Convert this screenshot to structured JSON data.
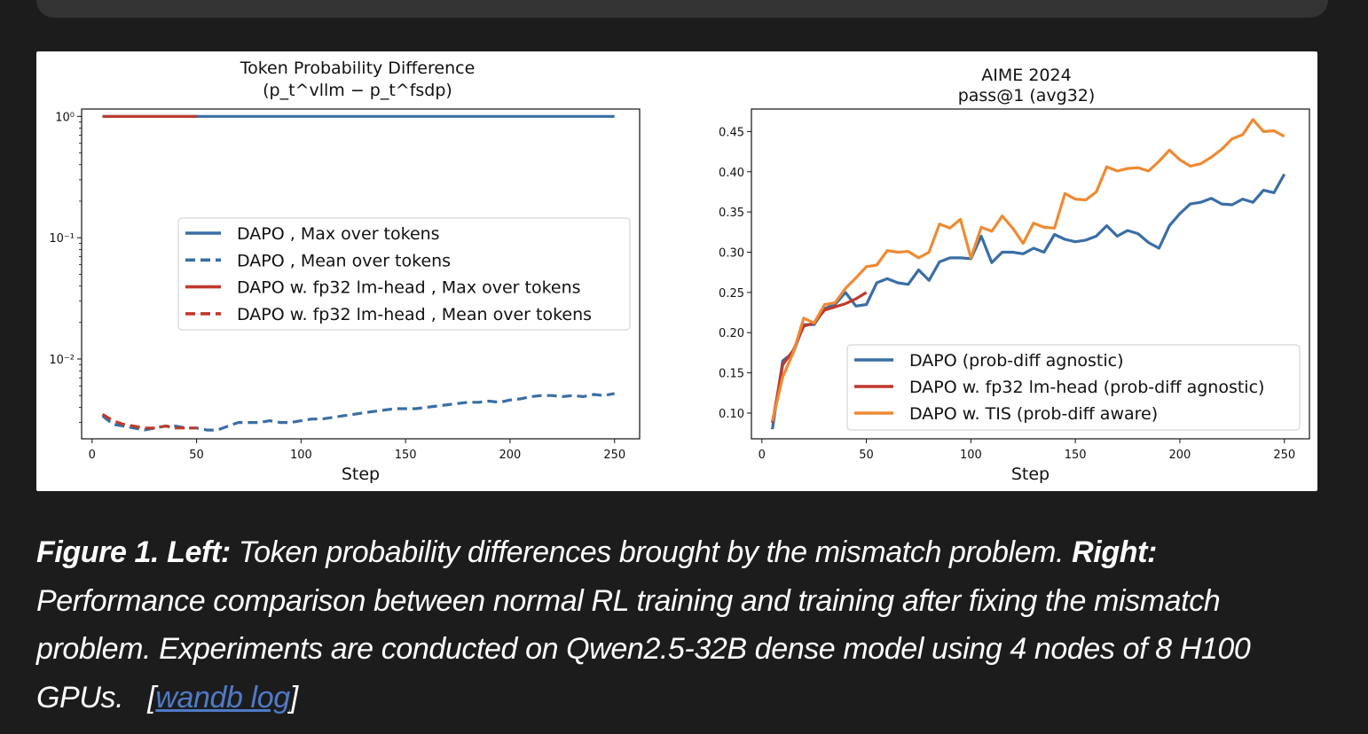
{
  "chart_data": [
    {
      "type": "line",
      "title": "Token Probability Difference",
      "subtitle": "(p_t^vllm − p_t^fsdp)",
      "xlabel": "Step",
      "ylabel": "",
      "yscale": "log",
      "xlim": [
        -5,
        262
      ],
      "ylim": [
        0.0022,
        1.15
      ],
      "xticks": [
        "0",
        "50",
        "100",
        "150",
        "200",
        "250"
      ],
      "yticks": [
        "10⁰",
        "10⁻¹",
        "10⁻²"
      ],
      "legend_position": "center",
      "series": [
        {
          "name": "DAPO , Max over tokens",
          "color": "#3a6ea5",
          "style": "solid",
          "x": [
            5,
            250
          ],
          "y": [
            1.0,
            1.0
          ]
        },
        {
          "name": "DAPO , Mean over tokens",
          "color": "#3a6ea5",
          "style": "dashed",
          "x": [
            5,
            10,
            15,
            20,
            25,
            30,
            35,
            40,
            45,
            50,
            55,
            60,
            65,
            70,
            75,
            80,
            85,
            90,
            95,
            100,
            105,
            110,
            115,
            120,
            125,
            130,
            135,
            140,
            145,
            150,
            155,
            160,
            165,
            170,
            175,
            180,
            185,
            190,
            195,
            200,
            205,
            210,
            215,
            220,
            225,
            230,
            235,
            240,
            245,
            250
          ],
          "y": [
            0.0034,
            0.0029,
            0.0028,
            0.0027,
            0.0026,
            0.0027,
            0.0028,
            0.0028,
            0.0027,
            0.0027,
            0.0026,
            0.0026,
            0.0028,
            0.003,
            0.003,
            0.003,
            0.0031,
            0.003,
            0.003,
            0.0031,
            0.0032,
            0.0032,
            0.0033,
            0.0034,
            0.0035,
            0.0036,
            0.0037,
            0.0038,
            0.0039,
            0.0039,
            0.0039,
            0.004,
            0.0041,
            0.0042,
            0.0043,
            0.0044,
            0.0044,
            0.0045,
            0.0044,
            0.0046,
            0.0047,
            0.0049,
            0.005,
            0.005,
            0.0049,
            0.005,
            0.0049,
            0.0051,
            0.005,
            0.0052
          ]
        },
        {
          "name": "DAPO w. fp32 lm-head , Max over tokens",
          "color": "#c0392b",
          "style": "solid",
          "x": [
            5,
            50
          ],
          "y": [
            1.0,
            1.0
          ]
        },
        {
          "name": "DAPO w. fp32 lm-head , Mean over tokens",
          "color": "#c0392b",
          "style": "dashed",
          "x": [
            5,
            10,
            15,
            20,
            25,
            30,
            35,
            40,
            45,
            50
          ],
          "y": [
            0.0035,
            0.0031,
            0.0029,
            0.0028,
            0.0027,
            0.0027,
            0.0028,
            0.0027,
            0.0027,
            0.0027
          ]
        }
      ]
    },
    {
      "type": "line",
      "title": "AIME 2024",
      "subtitle": "pass@1 (avg32)",
      "xlabel": "Step",
      "ylabel": "",
      "xlim": [
        -5,
        262
      ],
      "ylim": [
        0.068,
        0.478
      ],
      "xticks": [
        "0",
        "50",
        "100",
        "150",
        "200",
        "250"
      ],
      "yticks": [
        "0.10",
        "0.15",
        "0.20",
        "0.25",
        "0.30",
        "0.35",
        "0.40",
        "0.45"
      ],
      "legend_position": "lower-right",
      "series": [
        {
          "name": "DAPO (prob-diff agnostic)",
          "color": "#3a6ea5",
          "style": "solid",
          "x": [
            5,
            10,
            15,
            20,
            25,
            30,
            35,
            40,
            45,
            50,
            55,
            60,
            65,
            70,
            75,
            80,
            85,
            90,
            95,
            100,
            105,
            110,
            115,
            120,
            125,
            130,
            135,
            140,
            145,
            150,
            155,
            160,
            165,
            170,
            175,
            180,
            185,
            190,
            195,
            200,
            205,
            210,
            215,
            220,
            225,
            230,
            235,
            240,
            245,
            250
          ],
          "y": [
            0.08,
            0.165,
            0.175,
            0.21,
            0.21,
            0.23,
            0.235,
            0.25,
            0.233,
            0.235,
            0.262,
            0.267,
            0.262,
            0.26,
            0.278,
            0.265,
            0.288,
            0.293,
            0.293,
            0.292,
            0.32,
            0.287,
            0.3,
            0.3,
            0.298,
            0.305,
            0.3,
            0.322,
            0.316,
            0.313,
            0.315,
            0.32,
            0.333,
            0.32,
            0.327,
            0.323,
            0.312,
            0.305,
            0.333,
            0.348,
            0.36,
            0.362,
            0.367,
            0.36,
            0.359,
            0.366,
            0.362,
            0.377,
            0.374,
            0.397
          ]
        },
        {
          "name": "DAPO w. fp32 lm-head (prob-diff agnostic)",
          "color": "#c0392b",
          "style": "solid",
          "x": [
            5,
            10,
            15,
            20,
            25,
            30,
            35,
            40,
            45,
            50
          ],
          "y": [
            0.088,
            0.16,
            0.178,
            0.208,
            0.212,
            0.228,
            0.232,
            0.236,
            0.242,
            0.25
          ]
        },
        {
          "name": "DAPO w. TIS (prob-diff aware)",
          "color": "#ef8a32",
          "style": "solid",
          "x": [
            5,
            10,
            15,
            20,
            25,
            30,
            35,
            40,
            45,
            50,
            55,
            60,
            65,
            70,
            75,
            80,
            85,
            90,
            95,
            100,
            105,
            110,
            115,
            120,
            125,
            130,
            135,
            140,
            145,
            150,
            155,
            160,
            165,
            170,
            175,
            180,
            185,
            190,
            195,
            200,
            205,
            210,
            215,
            220,
            225,
            230,
            235,
            240,
            245,
            250
          ],
          "y": [
            0.09,
            0.145,
            0.175,
            0.218,
            0.212,
            0.235,
            0.237,
            0.255,
            0.268,
            0.282,
            0.284,
            0.302,
            0.3,
            0.301,
            0.293,
            0.3,
            0.335,
            0.33,
            0.341,
            0.293,
            0.331,
            0.326,
            0.345,
            0.33,
            0.311,
            0.336,
            0.331,
            0.33,
            0.373,
            0.366,
            0.365,
            0.375,
            0.406,
            0.401,
            0.404,
            0.405,
            0.401,
            0.413,
            0.427,
            0.415,
            0.407,
            0.41,
            0.418,
            0.428,
            0.441,
            0.446,
            0.465,
            0.45,
            0.451,
            0.444
          ]
        }
      ]
    }
  ],
  "caption": {
    "fig_label": "Figure 1.",
    "left_label": "Left:",
    "left_text": "Token probability differences brought by the mismatch problem.",
    "right_label": "Right:",
    "right_text": "Performance comparison between normal RL training and training after fixing the mismatch problem. Experiments are conducted on Qwen2.5-32B dense model using 4 nodes of 8 H100 GPUs.",
    "link_open": "[",
    "link_text": "wandb log",
    "link_close": "]"
  }
}
